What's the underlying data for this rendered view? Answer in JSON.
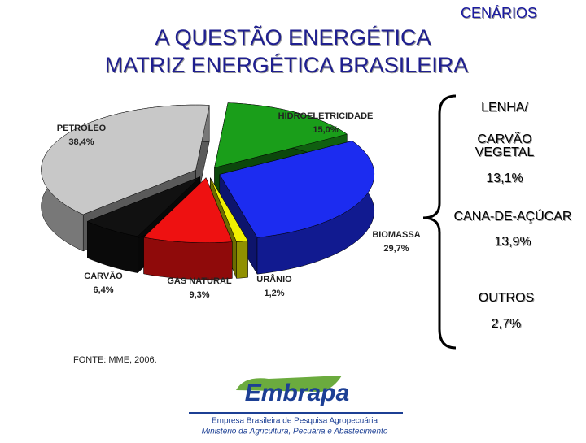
{
  "header": {
    "section": "CENÁRIOS",
    "title_lines": [
      "A QUESTÃO ENERGÉTICA",
      "MATRIZ ENERGÉTICA BRASILEIRA"
    ]
  },
  "chart_data": {
    "type": "pie",
    "categories": [
      "HIDROELETRICIDADE",
      "BIOMASSA",
      "URÂNIO",
      "GÁS NATURAL",
      "CARVÃO",
      "PETRÓLEO"
    ],
    "values": [
      15.0,
      29.7,
      1.2,
      9.3,
      6.4,
      38.4
    ],
    "value_labels": [
      "15,0%",
      "29,7%",
      "1,2%",
      "9,3%",
      "6,4%",
      "38,4%"
    ],
    "colors": [
      "#1a9e1a",
      "#1c2cf0",
      "#f0f000",
      "#ee1111",
      "#111111",
      "#c8c8c8"
    ]
  },
  "breakdown": [
    {
      "name_lines": [
        "LENHA/",
        "CARVÃO",
        "VEGETAL"
      ],
      "value": 13.1,
      "value_label": "13,1%"
    },
    {
      "name_lines": [
        "CANA-DE-AÇÚCAR"
      ],
      "value": 13.9,
      "value_label": "13,9%"
    },
    {
      "name_lines": [
        "OUTROS"
      ],
      "value": 2.7,
      "value_label": "2,7%"
    }
  ],
  "source": "FONTE: MME, 2006.",
  "footer": {
    "logo": "Embrapa",
    "lines": [
      "Empresa Brasileira de Pesquisa Agropecuária",
      "Ministério da Agricultura, Pecuária e Abastecimento"
    ]
  }
}
